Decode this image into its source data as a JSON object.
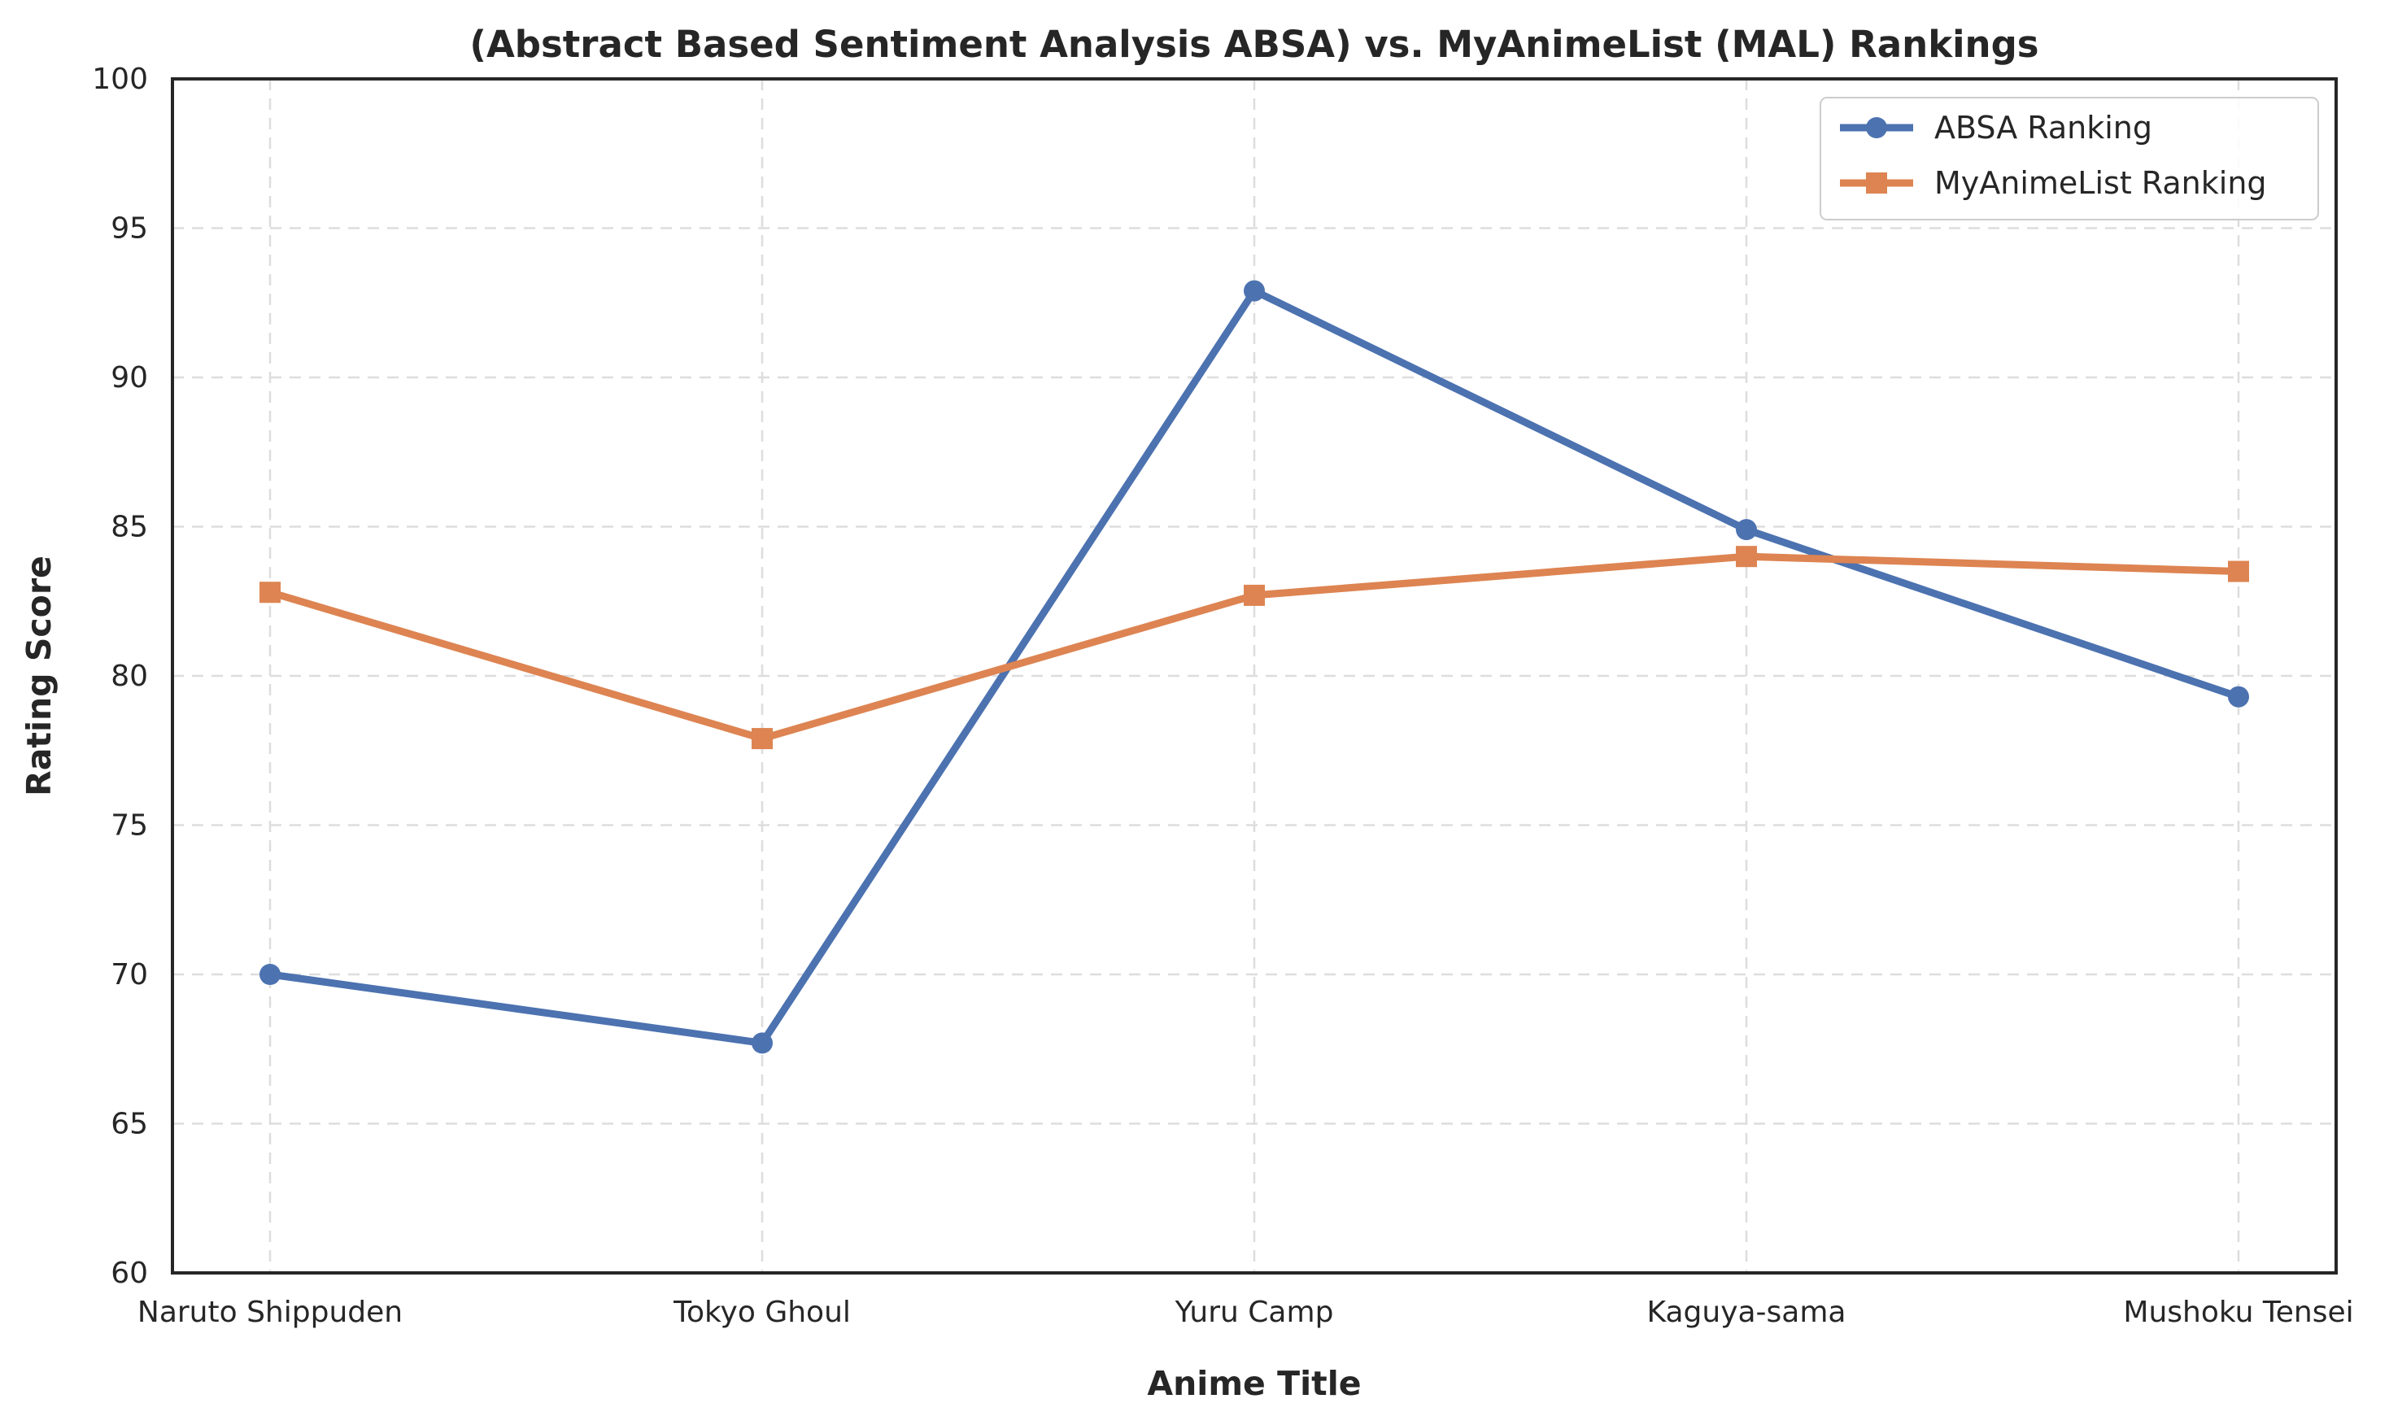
{
  "chart_data": {
    "type": "line",
    "title": "(Abstract Based Sentiment Analysis ABSA) vs. MyAnimeList (MAL) Rankings",
    "xlabel": "Anime Title",
    "ylabel": "Rating Score",
    "categories": [
      "Naruto Shippuden",
      "Tokyo Ghoul",
      "Yuru Camp",
      "Kaguya-sama",
      "Mushoku Tensei"
    ],
    "ylim": [
      60,
      100
    ],
    "yticks": [
      60,
      65,
      70,
      75,
      80,
      85,
      90,
      95,
      100
    ],
    "grid": true,
    "legend_position": "top-right",
    "series": [
      {
        "name": "ABSA Ranking",
        "values": [
          70.0,
          67.7,
          92.9,
          84.9,
          79.3
        ],
        "color": "#4c72b0",
        "marker": "circle"
      },
      {
        "name": "MyAnimeList Ranking",
        "values": [
          82.8,
          77.9,
          82.7,
          84.0,
          83.5
        ],
        "color": "#dd8452",
        "marker": "square"
      }
    ]
  }
}
